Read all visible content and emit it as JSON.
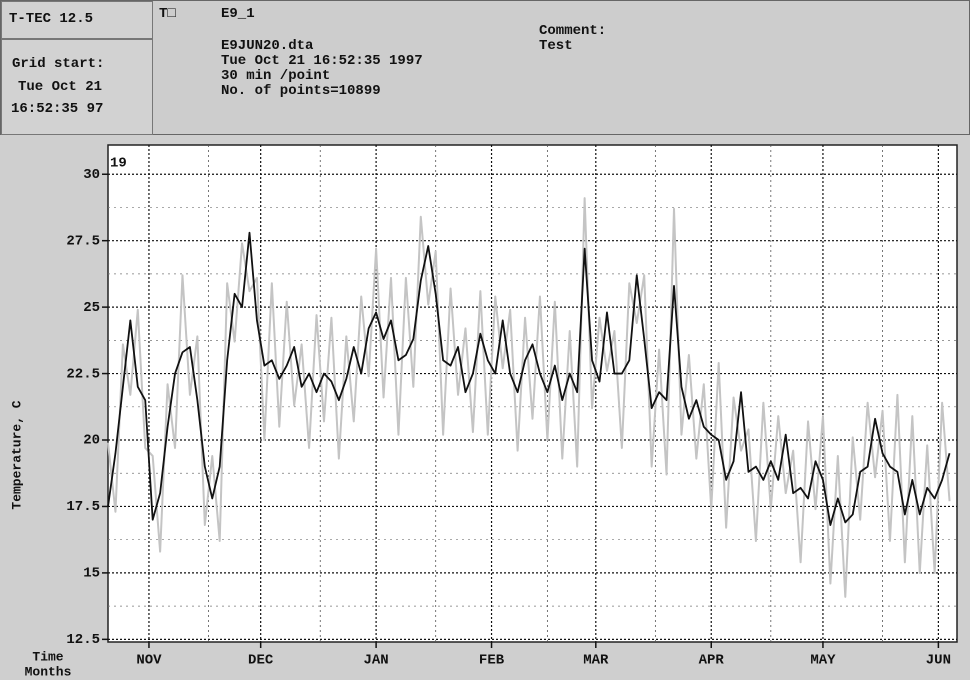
{
  "header": {
    "app": "T-TEC 12.5",
    "grid_start_label": "Grid start:",
    "grid_start_date": "Tue Oct 21",
    "grid_start_time": "16:52:35 97",
    "unit_mark": "T□",
    "name": "E9_1",
    "file": "E9JUN20.dta",
    "start": "Tue Oct 21 16:52:35 1997",
    "rate": "30 min /point",
    "points": "No. of points=10899",
    "comment_label": "Comment:",
    "comment": "Test"
  },
  "chart_data": {
    "type": "line",
    "ylabel": "Temperature, C",
    "xlabel": [
      "Time",
      "Months"
    ],
    "annotation": "19",
    "xlim": [
      0,
      228
    ],
    "ylim": [
      12.4,
      31.1
    ],
    "xticks": [
      {
        "value": 11,
        "label": "NOV"
      },
      {
        "value": 41,
        "label": "DEC"
      },
      {
        "value": 72,
        "label": "JAN"
      },
      {
        "value": 103,
        "label": "FEB"
      },
      {
        "value": 131,
        "label": "MAR"
      },
      {
        "value": 162,
        "label": "APR"
      },
      {
        "value": 192,
        "label": "MAY"
      },
      {
        "value": 223,
        "label": "JUN"
      }
    ],
    "xminor": [
      27,
      57,
      88,
      118,
      147,
      178,
      208
    ],
    "yticks": [
      12.5,
      15,
      17.5,
      20,
      22.5,
      25,
      27.5,
      30
    ],
    "yminor": [
      13.75,
      16.25,
      18.75,
      21.25,
      23.75,
      26.25,
      28.75
    ],
    "grid": true,
    "x": [
      0,
      2,
      4,
      6,
      8,
      10,
      12,
      14,
      16,
      18,
      20,
      22,
      24,
      26,
      28,
      30,
      32,
      34,
      36,
      38,
      40,
      42,
      44,
      46,
      48,
      50,
      52,
      54,
      56,
      58,
      60,
      62,
      64,
      66,
      68,
      70,
      72,
      74,
      76,
      78,
      80,
      82,
      84,
      86,
      88,
      90,
      92,
      94,
      96,
      98,
      100,
      102,
      104,
      106,
      108,
      110,
      112,
      114,
      116,
      118,
      120,
      122,
      124,
      126,
      128,
      130,
      132,
      134,
      136,
      138,
      140,
      142,
      144,
      146,
      148,
      150,
      152,
      154,
      156,
      158,
      160,
      162,
      164,
      166,
      168,
      170,
      172,
      174,
      176,
      178,
      180,
      182,
      184,
      186,
      188,
      190,
      192,
      194,
      196,
      198,
      200,
      202,
      204,
      206,
      208,
      210,
      212,
      214,
      216,
      218,
      220,
      222,
      224,
      226
    ],
    "series": [
      {
        "color": "#c4c4c4",
        "values": [
          19.9,
          17.3,
          23.6,
          21.7,
          24.9,
          19.7,
          19.4,
          15.8,
          22.1,
          19.7,
          26.2,
          21.7,
          23.9,
          16.8,
          19.4,
          16.2,
          25.9,
          23.7,
          27.4,
          25.6,
          26.1,
          20,
          25.9,
          20.5,
          25.2,
          21.3,
          23.6,
          19.7,
          24.7,
          20.7,
          24.6,
          19.3,
          23.9,
          20.7,
          25.4,
          22.4,
          27.2,
          21.6,
          26.1,
          20.2,
          26.1,
          22,
          28.4,
          25.1,
          27.1,
          20.2,
          25.7,
          21.7,
          24.2,
          20.3,
          25.6,
          20.2,
          25.4,
          22.7,
          24.9,
          19.6,
          24.6,
          20.8,
          25.4,
          20,
          25.2,
          19.3,
          24.1,
          19,
          29.1,
          21.2,
          24.6,
          22.6,
          24.1,
          19.7,
          25.9,
          24.4,
          26.2,
          19,
          23.4,
          18.7,
          28.7,
          20.2,
          23.2,
          19.3,
          22.1,
          17.4,
          22.9,
          16.7,
          21.6,
          19.6,
          20.4,
          16.2,
          21.4,
          17.4,
          20.9,
          18,
          19.6,
          15.4,
          20.7,
          17.4,
          20.9,
          14.6,
          19.4,
          14.1,
          20.1,
          17,
          21.4,
          18.6,
          21.1,
          16.2,
          21.7,
          15.4,
          20.9,
          15,
          19.8,
          15,
          21.4,
          17.7
        ]
      },
      {
        "color": "#111111",
        "values": [
          17.5,
          19.5,
          22,
          24.5,
          22,
          21.5,
          17,
          18,
          20.5,
          22.5,
          23.3,
          23.5,
          21.5,
          19,
          17.8,
          19,
          23,
          25.5,
          25,
          27.8,
          24.5,
          22.8,
          23,
          22.3,
          22.8,
          23.5,
          22,
          22.5,
          21.8,
          22.5,
          22.2,
          21.5,
          22.3,
          23.5,
          22.5,
          24.2,
          24.8,
          23.8,
          24.5,
          23,
          23.2,
          23.8,
          26,
          27.3,
          25.5,
          23,
          22.8,
          23.5,
          21.8,
          22.5,
          24,
          23,
          22.5,
          24.5,
          22.5,
          21.8,
          23,
          23.6,
          22.5,
          21.8,
          22.8,
          21.5,
          22.5,
          21.8,
          27.2,
          23,
          22.2,
          24.8,
          22.5,
          22.5,
          23,
          26.2,
          23.8,
          21.2,
          21.8,
          21.5,
          25.8,
          22,
          20.8,
          21.5,
          20.5,
          20.2,
          20,
          18.5,
          19.2,
          21.8,
          18.8,
          19,
          18.5,
          19.2,
          18.5,
          20.2,
          18,
          18.2,
          17.8,
          19.2,
          18.5,
          16.8,
          17.8,
          16.9,
          17.2,
          18.8,
          19,
          20.8,
          19.5,
          19,
          18.8,
          17.2,
          18.5,
          17.2,
          18.2,
          17.8,
          18.5,
          19.5
        ]
      }
    ]
  }
}
